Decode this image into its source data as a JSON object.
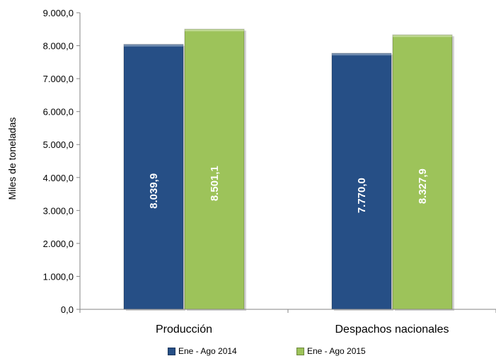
{
  "chart_data": {
    "type": "bar",
    "categories": [
      "Producción",
      "Despachos nacionales"
    ],
    "series": [
      {
        "name": "Ene - Ago 2014",
        "values": [
          8039.9,
          7770.0
        ],
        "labels": [
          "8.039,9",
          "7.770,0"
        ],
        "color": "#264f86"
      },
      {
        "name": "Ene - Ago 2015",
        "values": [
          8501.1,
          8327.9
        ],
        "labels": [
          "8.501,1",
          "8.327,9"
        ],
        "color": "#9dc35a"
      }
    ],
    "ylabel": "Miles de toneladas",
    "ylim": [
      0,
      9000
    ],
    "yticks": [
      0,
      1000,
      2000,
      3000,
      4000,
      5000,
      6000,
      7000,
      8000,
      9000
    ],
    "ytick_labels": [
      "0,0",
      "1.000,0",
      "2.000,0",
      "3.000,0",
      "4.000,0",
      "5.000,0",
      "6.000,0",
      "7.000,0",
      "8.000,0",
      "9.000,0"
    ],
    "grid": false,
    "legend_position": "bottom"
  }
}
